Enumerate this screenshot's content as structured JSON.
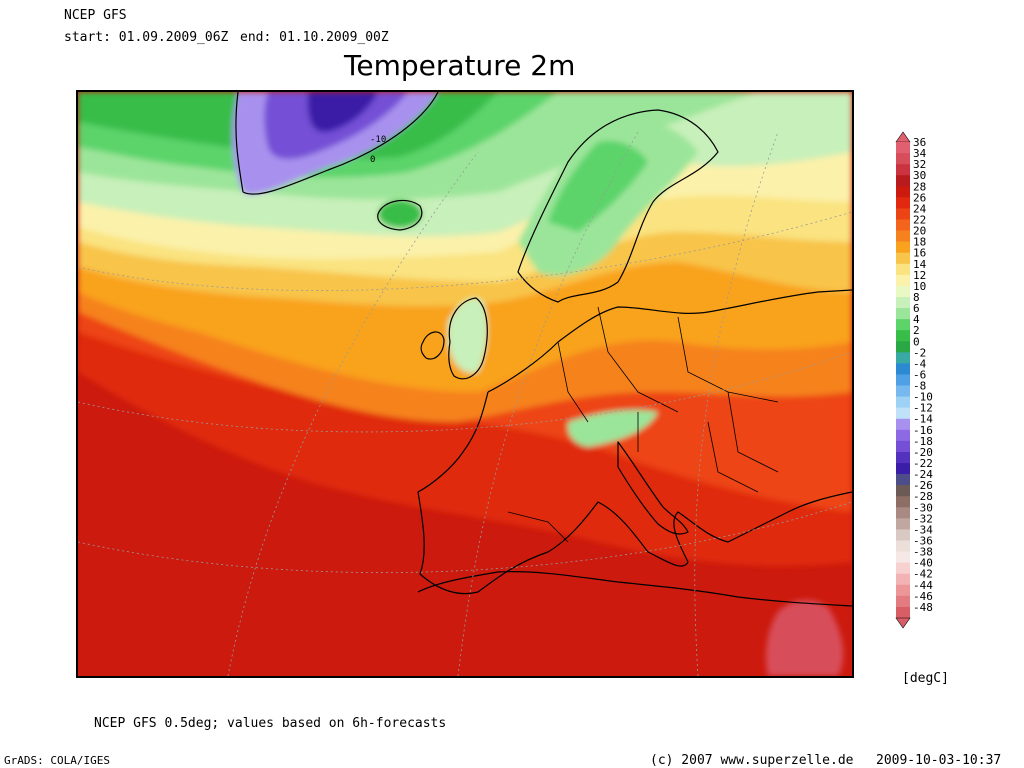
{
  "header": {
    "model": "NCEP GFS",
    "start": "start: 01.09.2009_06Z",
    "end": "end: 01.10.2009_00Z"
  },
  "title": "Temperature 2m",
  "colorbar": {
    "unit": "[degC]",
    "labels": [
      "36",
      "34",
      "32",
      "30",
      "28",
      "26",
      "24",
      "22",
      "20",
      "18",
      "16",
      "14",
      "12",
      "10",
      "8",
      "6",
      "4",
      "2",
      "0",
      "-2",
      "-4",
      "-6",
      "-8",
      "-10",
      "-12",
      "-14",
      "-16",
      "-18",
      "-20",
      "-22",
      "-24",
      "-26",
      "-28",
      "-30",
      "-32",
      "-34",
      "-36",
      "-38",
      "-40",
      "-42",
      "-44",
      "-46",
      "-48"
    ],
    "colors": [
      "#e06070",
      "#d84d5a",
      "#cc3340",
      "#b81a1e",
      "#cc1a0e",
      "#e0290e",
      "#ed4415",
      "#f5641c",
      "#f6821f",
      "#f9a21e",
      "#f8c44a",
      "#fae380",
      "#fbf1aa",
      "#eaf8c4",
      "#c8f0ba",
      "#9be59a",
      "#5cd46a",
      "#37bd48",
      "#2aa845",
      "#39a9a3",
      "#2b8ad2",
      "#4fa0e4",
      "#77b8ee",
      "#9ed2f4",
      "#bfe2f8",
      "#a891ee",
      "#8d6ae3",
      "#7550d6",
      "#5332be",
      "#3a1ea7",
      "#4d4d8a",
      "#6b5a55",
      "#8d6e65",
      "#a88a82",
      "#c0a79f",
      "#d9c9c3",
      "#ecdfda",
      "#f6e8e6",
      "#f7d0d0",
      "#f3b2b4",
      "#ec9698",
      "#e37c80",
      "#d85e66"
    ]
  },
  "map_labels": [
    "-10",
    "0"
  ],
  "footnote": "NCEP GFS 0.5deg; values based on 6h-forecasts",
  "footer": {
    "software": "GrADS: COLA/IGES",
    "copyright": "(c) 2007 www.superzelle.de",
    "timestamp": "2009-10-03-10:37"
  }
}
